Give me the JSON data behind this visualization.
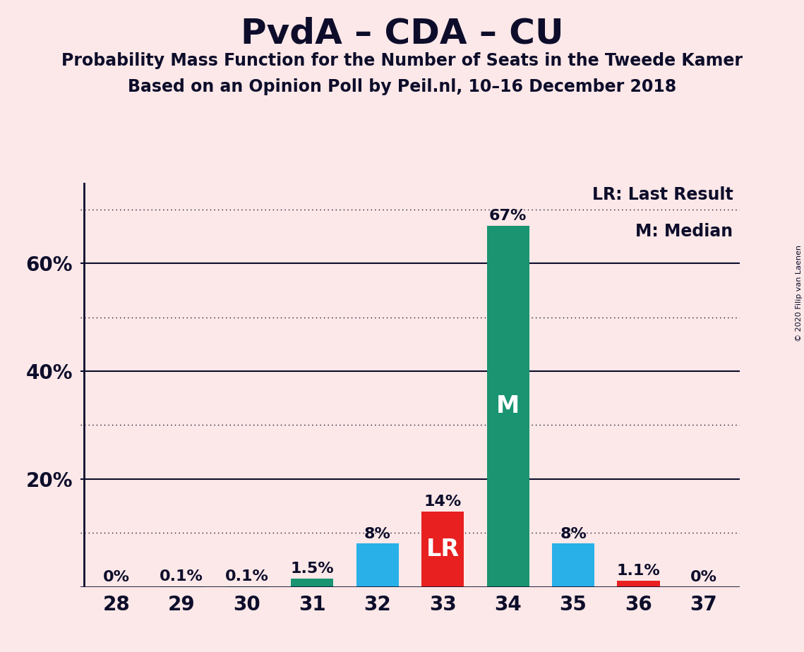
{
  "title": "PvdA – CDA – CU",
  "subtitle1": "Probability Mass Function for the Number of Seats in the Tweede Kamer",
  "subtitle2": "Based on an Opinion Poll by Peil.nl, 10–16 December 2018",
  "copyright": "© 2020 Filip van Laenen",
  "categories": [
    28,
    29,
    30,
    31,
    32,
    33,
    34,
    35,
    36,
    37
  ],
  "values": [
    0.0,
    0.1,
    0.1,
    1.5,
    8.0,
    14.0,
    67.0,
    8.0,
    1.1,
    0.0
  ],
  "labels": [
    "0%",
    "0.1%",
    "0.1%",
    "1.5%",
    "8%",
    "14%",
    "67%",
    "8%",
    "1.1%",
    "0%"
  ],
  "bar_colors": [
    "#1a9471",
    "#1a9471",
    "#1a9471",
    "#1a9471",
    "#29b0e8",
    "#e82020",
    "#1a9471",
    "#29b0e8",
    "#e82020",
    "#1a9471"
  ],
  "bar_labels": [
    "",
    "",
    "",
    "",
    "",
    "LR",
    "M",
    "",
    "",
    ""
  ],
  "background_color": "#fce8e8",
  "text_color": "#0d0d2b",
  "legend_text": [
    "LR: Last Result",
    "M: Median"
  ],
  "solid_gridlines": [
    20,
    40,
    60
  ],
  "dotted_gridlines": [
    10,
    30,
    50,
    70
  ],
  "ylim": [
    0,
    75
  ],
  "bar_width": 0.65,
  "label_fontsize": 16,
  "tick_fontsize": 20,
  "title_fontsize": 36,
  "subtitle_fontsize": 17,
  "legend_fontsize": 17,
  "bar_inner_fontsize": 24
}
